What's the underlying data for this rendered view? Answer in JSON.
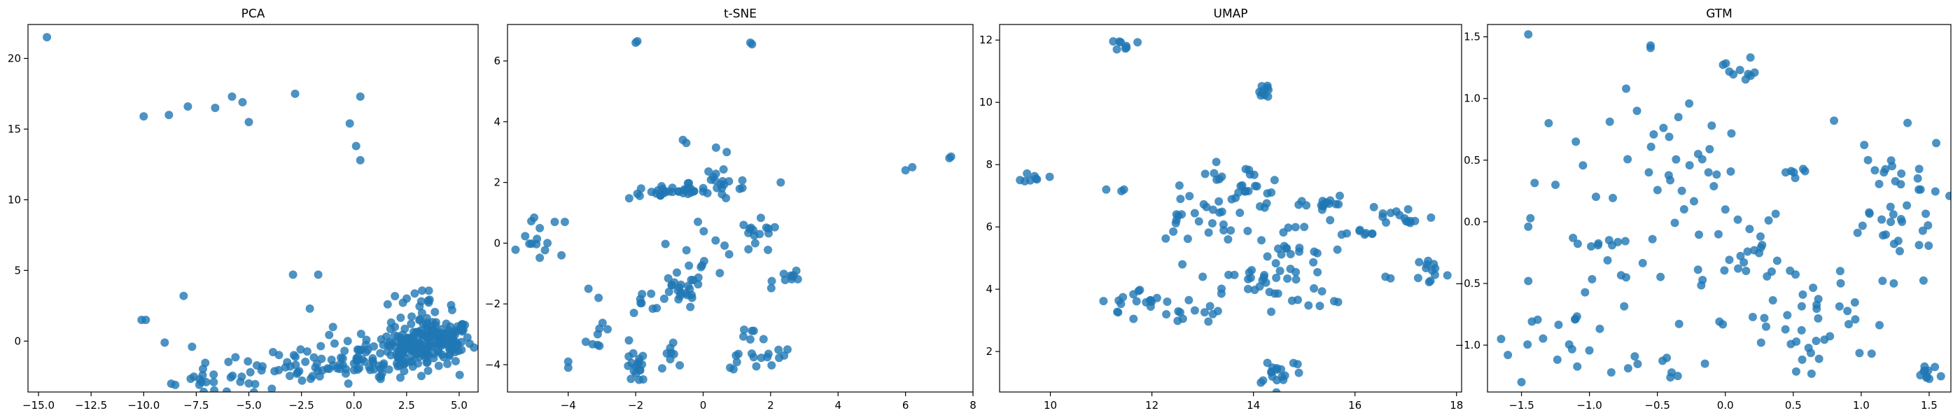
{
  "colors": {
    "point": "#1f77b4",
    "axis": "#000000",
    "background": "#ffffff"
  },
  "chart_data": [
    {
      "type": "scatter",
      "title": "PCA",
      "xlabel": "",
      "ylabel": "",
      "xlim": [
        -15.5,
        5.9
      ],
      "ylim": [
        -3.6,
        22.4
      ],
      "xticks": [
        -15.0,
        -12.5,
        -10.0,
        -7.5,
        -5.0,
        -2.5,
        0.0,
        2.5,
        5.0
      ],
      "xtick_labels": [
        "−15.0",
        "−12.5",
        "−10.0",
        "−7.5",
        "−5.0",
        "−2.5",
        "0.0",
        "2.5",
        "5.0"
      ],
      "yticks": [
        0,
        5,
        10,
        15,
        20
      ],
      "ytick_labels": [
        "0",
        "5",
        "10",
        "15",
        "20"
      ],
      "grid": false,
      "legend": "none",
      "clusters": [
        {
          "x": 3.8,
          "y": 0.0,
          "sx": 0.9,
          "sy": 0.8,
          "n": 130
        },
        {
          "x": 2.3,
          "y": -0.6,
          "sx": 1.0,
          "sy": 0.9,
          "n": 70
        },
        {
          "x": 0.4,
          "y": -1.3,
          "sx": 1.1,
          "sy": 0.8,
          "n": 45
        },
        {
          "x": -2.0,
          "y": -1.8,
          "sx": 1.2,
          "sy": 0.7,
          "n": 30
        },
        {
          "x": -4.8,
          "y": -2.3,
          "sx": 1.3,
          "sy": 0.6,
          "n": 22
        },
        {
          "x": -7.4,
          "y": -2.9,
          "sx": 0.8,
          "sy": 0.4,
          "n": 12
        },
        {
          "x": 3.0,
          "y": 2.4,
          "sx": 0.9,
          "sy": 0.6,
          "n": 18
        }
      ],
      "points": [
        [
          -14.6,
          21.5
        ],
        [
          -10.0,
          15.9
        ],
        [
          -8.8,
          16.0
        ],
        [
          -7.9,
          16.6
        ],
        [
          -6.6,
          16.5
        ],
        [
          -5.8,
          17.3
        ],
        [
          -5.3,
          16.9
        ],
        [
          -5.0,
          15.5
        ],
        [
          -2.8,
          17.5
        ],
        [
          -0.2,
          15.4
        ],
        [
          0.1,
          13.8
        ],
        [
          0.3,
          12.8
        ],
        [
          0.3,
          17.3
        ],
        [
          -2.9,
          4.7
        ],
        [
          -1.7,
          4.7
        ],
        [
          -8.1,
          3.2
        ],
        [
          -10.1,
          1.5
        ],
        [
          -9.9,
          1.5
        ],
        [
          -9.0,
          -0.1
        ],
        [
          -8.5,
          -3.1
        ],
        [
          -7.7,
          -0.4
        ],
        [
          -2.1,
          2.3
        ],
        [
          -1.0,
          1.0
        ],
        [
          -0.3,
          0.0
        ],
        [
          1.6,
          2.6
        ],
        [
          5.2,
          0.8
        ]
      ]
    },
    {
      "type": "scatter",
      "title": "t-SNE",
      "xlabel": "",
      "ylabel": "",
      "xlim": [
        -5.8,
        8.0
      ],
      "ylim": [
        -4.9,
        7.2
      ],
      "xticks": [
        -4,
        -2,
        0,
        2,
        4,
        6,
        8
      ],
      "xtick_labels": [
        "−4",
        "−2",
        "0",
        "2",
        "4",
        "6",
        "8"
      ],
      "yticks": [
        -4,
        -2,
        0,
        2,
        4,
        6
      ],
      "ytick_labels": [
        "−4",
        "−2",
        "0",
        "2",
        "4",
        "6"
      ],
      "grid": false,
      "legend": "none",
      "clusters": [
        {
          "x": -1.0,
          "y": 1.7,
          "sx": 0.6,
          "sy": 0.12,
          "n": 28
        },
        {
          "x": 0.6,
          "y": 2.0,
          "sx": 0.5,
          "sy": 0.35,
          "n": 22
        },
        {
          "x": -0.7,
          "y": -1.6,
          "sx": 0.35,
          "sy": 0.3,
          "n": 22
        },
        {
          "x": -2.0,
          "y": -4.1,
          "sx": 0.15,
          "sy": 0.25,
          "n": 16
        },
        {
          "x": -4.9,
          "y": 0.1,
          "sx": 0.25,
          "sy": 0.35,
          "n": 12
        },
        {
          "x": 1.6,
          "y": 0.1,
          "sx": 0.35,
          "sy": 0.3,
          "n": 14
        },
        {
          "x": 2.7,
          "y": -1.1,
          "sx": 0.3,
          "sy": 0.15,
          "n": 10
        },
        {
          "x": -1.5,
          "y": -1.9,
          "sx": 0.35,
          "sy": 0.4,
          "n": 10
        },
        {
          "x": 1.9,
          "y": -3.8,
          "sx": 0.3,
          "sy": 0.15,
          "n": 10
        },
        {
          "x": 0.0,
          "y": 0.1,
          "sx": 0.5,
          "sy": 0.6,
          "n": 12
        },
        {
          "x": -3.1,
          "y": -3.1,
          "sx": 0.2,
          "sy": 0.2,
          "n": 8
        },
        {
          "x": -0.8,
          "y": -3.5,
          "sx": 0.25,
          "sy": 0.3,
          "n": 8
        },
        {
          "x": 1.4,
          "y": -3.3,
          "sx": 0.3,
          "sy": 0.3,
          "n": 8
        }
      ],
      "points": [
        [
          -2.0,
          6.6
        ],
        [
          -1.95,
          6.65
        ],
        [
          1.4,
          6.6
        ],
        [
          1.45,
          6.55
        ],
        [
          -0.6,
          3.4
        ],
        [
          -0.5,
          3.3
        ],
        [
          0.7,
          3.0
        ],
        [
          6.0,
          2.4
        ],
        [
          6.2,
          2.5
        ],
        [
          7.3,
          2.8
        ],
        [
          7.35,
          2.85
        ],
        [
          -4.4,
          0.7
        ],
        [
          -4.1,
          0.7
        ],
        [
          -4.2,
          -0.4
        ],
        [
          -3.1,
          -1.8
        ],
        [
          -3.4,
          -1.5
        ],
        [
          -2.2,
          -3.2
        ],
        [
          0.8,
          -4.1
        ],
        [
          0.9,
          -4.15
        ],
        [
          2.5,
          -3.5
        ],
        [
          2.4,
          -3.7
        ],
        [
          -4.0,
          -3.9
        ],
        [
          -4.0,
          -4.1
        ],
        [
          -1.9,
          -4.5
        ],
        [
          0.0,
          1.7
        ],
        [
          2.3,
          2.0
        ],
        [
          1.2,
          0.6
        ]
      ]
    },
    {
      "type": "scatter",
      "title": "UMAP",
      "xlabel": "",
      "ylabel": "",
      "xlim": [
        9.0,
        18.1
      ],
      "ylim": [
        0.7,
        12.5
      ],
      "xticks": [
        10,
        12,
        14,
        16,
        18
      ],
      "xtick_labels": [
        "10",
        "12",
        "14",
        "16",
        "18"
      ],
      "yticks": [
        2,
        4,
        6,
        8,
        10,
        12
      ],
      "ytick_labels": [
        "2",
        "4",
        "6",
        "8",
        "10",
        "12"
      ],
      "grid": false,
      "legend": "none",
      "clusters": [
        {
          "x": 13.7,
          "y": 7.3,
          "sx": 0.5,
          "sy": 0.35,
          "n": 30
        },
        {
          "x": 12.8,
          "y": 6.3,
          "sx": 0.45,
          "sy": 0.4,
          "n": 22
        },
        {
          "x": 14.6,
          "y": 5.0,
          "sx": 0.45,
          "sy": 0.6,
          "n": 28
        },
        {
          "x": 14.1,
          "y": 4.0,
          "sx": 0.35,
          "sy": 0.4,
          "n": 20
        },
        {
          "x": 15.5,
          "y": 6.7,
          "sx": 0.5,
          "sy": 0.15,
          "n": 14
        },
        {
          "x": 16.9,
          "y": 6.3,
          "sx": 0.35,
          "sy": 0.2,
          "n": 14
        },
        {
          "x": 17.5,
          "y": 4.6,
          "sx": 0.15,
          "sy": 0.25,
          "n": 12
        },
        {
          "x": 14.5,
          "y": 1.4,
          "sx": 0.25,
          "sy": 0.25,
          "n": 18
        },
        {
          "x": 11.8,
          "y": 3.6,
          "sx": 0.4,
          "sy": 0.2,
          "n": 16
        },
        {
          "x": 12.5,
          "y": 3.2,
          "sx": 0.4,
          "sy": 0.25,
          "n": 12
        },
        {
          "x": 14.2,
          "y": 10.4,
          "sx": 0.08,
          "sy": 0.15,
          "n": 10
        },
        {
          "x": 9.7,
          "y": 7.6,
          "sx": 0.12,
          "sy": 0.08,
          "n": 8
        },
        {
          "x": 11.5,
          "y": 11.85,
          "sx": 0.1,
          "sy": 0.1,
          "n": 8
        },
        {
          "x": 16.1,
          "y": 5.85,
          "sx": 0.25,
          "sy": 0.05,
          "n": 8
        },
        {
          "x": 15.3,
          "y": 3.7,
          "sx": 0.2,
          "sy": 0.25,
          "n": 6
        }
      ],
      "points": [
        [
          11.1,
          7.2
        ],
        [
          11.4,
          7.15
        ],
        [
          11.45,
          7.2
        ],
        [
          16.6,
          4.4
        ],
        [
          16.7,
          4.35
        ],
        [
          13.3,
          3.3
        ],
        [
          13.2,
          3.2
        ],
        [
          12.6,
          4.8
        ],
        [
          15.0,
          6.0
        ],
        [
          13.0,
          4.4
        ],
        [
          15.7,
          7.0
        ],
        [
          13.5,
          5.6
        ]
      ]
    },
    {
      "type": "scatter",
      "title": "GTM",
      "xlabel": "",
      "ylabel": "",
      "xlim": [
        -1.75,
        1.66
      ],
      "ylim": [
        -1.38,
        1.6
      ],
      "xticks": [
        -1.5,
        -1.0,
        -0.5,
        0.0,
        0.5,
        1.0,
        1.5
      ],
      "xtick_labels": [
        "−1.5",
        "−1.0",
        "−0.5",
        "0.0",
        "0.5",
        "1.0",
        "1.5"
      ],
      "yticks": [
        -1.0,
        -0.5,
        0.0,
        0.5,
        1.0,
        1.5
      ],
      "ytick_labels": [
        "−1.0",
        "−0.5",
        "0.0",
        "0.5",
        "1.0",
        "1.5"
      ],
      "grid": false,
      "legend": "none",
      "clusters": [
        {
          "x": 1.2,
          "y": 0.1,
          "sx": 0.22,
          "sy": 0.3,
          "n": 40
        },
        {
          "x": 0.75,
          "y": -0.7,
          "sx": 0.22,
          "sy": 0.2,
          "n": 24
        },
        {
          "x": -0.3,
          "y": -0.45,
          "sx": 0.35,
          "sy": 0.25,
          "n": 22
        },
        {
          "x": 0.1,
          "y": 1.25,
          "sx": 0.06,
          "sy": 0.06,
          "n": 10
        },
        {
          "x": -1.0,
          "y": -0.1,
          "sx": 0.2,
          "sy": 0.3,
          "n": 16
        },
        {
          "x": -1.2,
          "y": -1.0,
          "sx": 0.2,
          "sy": 0.2,
          "n": 14
        },
        {
          "x": 0.6,
          "y": -1.0,
          "sx": 0.15,
          "sy": 0.15,
          "n": 14
        },
        {
          "x": 1.5,
          "y": -1.25,
          "sx": 0.05,
          "sy": 0.04,
          "n": 10
        },
        {
          "x": -0.2,
          "y": 0.3,
          "sx": 0.25,
          "sy": 0.25,
          "n": 16
        },
        {
          "x": 0.3,
          "y": -0.2,
          "sx": 0.2,
          "sy": 0.2,
          "n": 12
        },
        {
          "x": -0.6,
          "y": -1.15,
          "sx": 0.15,
          "sy": 0.08,
          "n": 8
        },
        {
          "x": -0.6,
          "y": 0.65,
          "sx": 0.2,
          "sy": 0.15,
          "n": 10
        },
        {
          "x": 0.55,
          "y": 0.4,
          "sx": 0.06,
          "sy": 0.02,
          "n": 6
        }
      ],
      "points": [
        [
          -1.45,
          1.52
        ],
        [
          -0.55,
          1.43
        ],
        [
          -0.73,
          1.08
        ],
        [
          -0.55,
          1.41
        ],
        [
          -0.65,
          0.9
        ],
        [
          -1.3,
          0.8
        ],
        [
          -1.25,
          0.3
        ],
        [
          -1.1,
          0.65
        ],
        [
          -1.45,
          -0.04
        ],
        [
          -1.45,
          -0.48
        ],
        [
          -1.65,
          -0.95
        ],
        [
          -1.6,
          -1.08
        ],
        [
          -1.5,
          -1.3
        ],
        [
          0.8,
          0.82
        ],
        [
          0.0,
          0.1
        ],
        [
          -0.1,
          0.78
        ],
        [
          -0.2,
          0.55
        ],
        [
          0.3,
          -0.85
        ],
        [
          -0.15,
          -1.15
        ],
        [
          -0.35,
          -1.25
        ],
        [
          1.05,
          0.5
        ],
        [
          1.3,
          0.0
        ]
      ]
    }
  ]
}
